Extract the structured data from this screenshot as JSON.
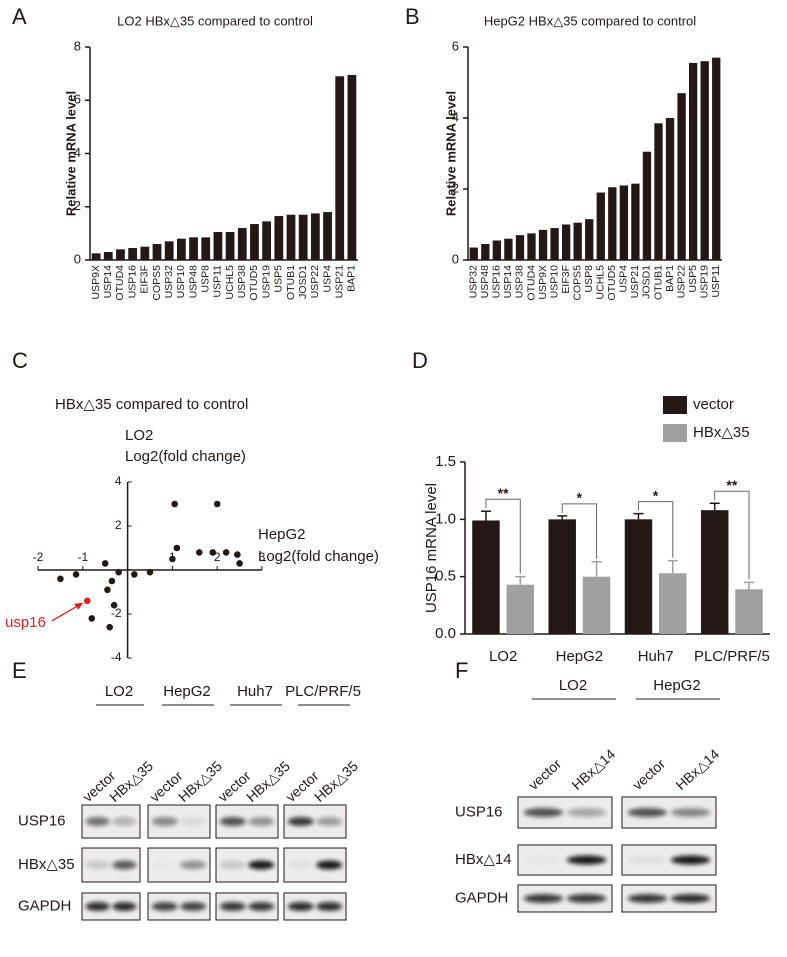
{
  "panel_labels": [
    "A",
    "B",
    "C",
    "D"
  ],
  "chart_data": [
    {
      "type": "bar",
      "title": "LO2 HBx△35 compared to control",
      "y_label": "Relative mRNA level",
      "color": "#231815",
      "categories": [
        "USP9X",
        "USP14",
        "OTUD4",
        "USP16",
        "EIF3F",
        "COPS5",
        "USP32",
        "USP10",
        "USP48",
        "USP8",
        "USP11",
        "UCHL5",
        "USP38",
        "OTUD5",
        "USP19",
        "USP5",
        "OTUB1",
        "JOSD1",
        "USP22",
        "USP4",
        "USP21",
        "BAP1"
      ],
      "values": [
        0.25,
        0.3,
        0.4,
        0.45,
        0.5,
        0.6,
        0.7,
        0.8,
        0.85,
        0.85,
        1.05,
        1.05,
        1.2,
        1.35,
        1.45,
        1.65,
        1.7,
        1.7,
        1.75,
        1.8,
        6.9,
        6.95
      ],
      "ylim": [
        0,
        8
      ],
      "yticks": [
        0,
        2,
        4,
        6,
        8
      ]
    },
    {
      "type": "bar",
      "title": "HepG2 HBx△35 compared to control",
      "y_label": "Relative mRNA level",
      "color": "#231815",
      "categories": [
        "USP32",
        "USP48",
        "USP16",
        "USP14",
        "USP38",
        "OTUD4",
        "USP9X",
        "USP10",
        "EIF3F",
        "COPS5",
        "USP8",
        "UCHL5",
        "OTUD5",
        "USP4",
        "USP21",
        "JOSD1",
        "OTUB1",
        "BAP1",
        "USP22",
        "USP5",
        "USP19",
        "USP11"
      ],
      "values": [
        0.35,
        0.45,
        0.55,
        0.6,
        0.7,
        0.75,
        0.85,
        0.9,
        1.0,
        1.05,
        1.15,
        1.9,
        2.05,
        2.1,
        2.15,
        3.05,
        3.85,
        4.0,
        4.7,
        5.55,
        5.6,
        5.7
      ],
      "ylim": [
        0,
        6
      ],
      "yticks": [
        0,
        2,
        4,
        6
      ]
    },
    {
      "type": "scatter",
      "title": "HBx△35 compared to control",
      "y_label": [
        "LO2",
        "Log2(fold change)"
      ],
      "x_label": [
        "HepG2",
        "Log2(fold change)"
      ],
      "x": [
        1.05,
        2.0,
        1.1,
        1.0,
        1.6,
        1.9,
        2.2,
        2.45,
        2.5,
        -0.5,
        -1.5,
        -1.15,
        -0.35,
        -0.2,
        0.15,
        0.5,
        -0.9,
        -0.8,
        -0.3,
        -0.4,
        -0.45
      ],
      "values": [
        3.0,
        3.0,
        1.0,
        0.5,
        0.8,
        0.8,
        0.8,
        0.7,
        0.3,
        0.3,
        -0.4,
        -0.2,
        -0.5,
        -0.1,
        -0.2,
        -0.1,
        -1.4,
        -2.2,
        -1.6,
        -2.6,
        -0.9
      ],
      "colors": [
        "#231815",
        "#231815",
        "#231815",
        "#231815",
        "#231815",
        "#231815",
        "#231815",
        "#231815",
        "#231815",
        "#231815",
        "#231815",
        "#231815",
        "#231815",
        "#231815",
        "#231815",
        "#231815",
        "#e51e1e",
        "#231815",
        "#231815",
        "#231815",
        "#231815"
      ],
      "annotation": "usp16",
      "annotation_color": "#e51e1e",
      "xlim": [
        -2,
        3
      ],
      "xticks": [
        -2,
        -1,
        1,
        2,
        3
      ],
      "ylim": [
        -4,
        4
      ],
      "yticks": [
        -4,
        -2,
        2,
        4
      ]
    },
    {
      "type": "bar",
      "y_label": "USP16 mRNA level",
      "legend": "upper right",
      "categories": [
        "LO2",
        "HepG2",
        "Huh7",
        "PLC/PRF/5"
      ],
      "series": [
        {
          "name": "vector",
          "color": "#231815",
          "values": [
            0.99,
            1.0,
            1.0,
            1.08
          ],
          "errors": [
            0.08,
            0.03,
            0.05,
            0.06
          ]
        },
        {
          "name": "HBx△35",
          "color": "#a0a0a0",
          "values": [
            0.43,
            0.5,
            0.53,
            0.39
          ],
          "errors": [
            0.07,
            0.13,
            0.11,
            0.06
          ]
        }
      ],
      "significance": [
        "**",
        "*",
        "*",
        "**"
      ],
      "ylim": [
        0,
        1.5
      ],
      "yticks": [
        {
          "value": 0,
          "label": "0.0"
        },
        0.5,
        {
          "value": 1,
          "label": "1.0"
        },
        {
          "value": 1.5,
          "label": "1.5"
        }
      ]
    }
  ],
  "blots": [
    {
      "panel": "E",
      "groups": [
        "LO2",
        "HepG2",
        "Huh7",
        "PLC/PRF/5"
      ],
      "lanes": [
        "vector",
        "HBx△35",
        "vector",
        "HBx△35",
        "vector",
        "HBx△35",
        "vector",
        "HBx△35"
      ],
      "rows": [
        "USP16",
        "HBx△35",
        "GAPDH"
      ]
    },
    {
      "panel": "F",
      "groups": [
        "LO2",
        "HepG2"
      ],
      "lanes": [
        "vector",
        "HBx△14",
        "vector",
        "HBx△14"
      ],
      "rows": [
        "USP16",
        "HBx△14",
        "GAPDH"
      ]
    }
  ]
}
